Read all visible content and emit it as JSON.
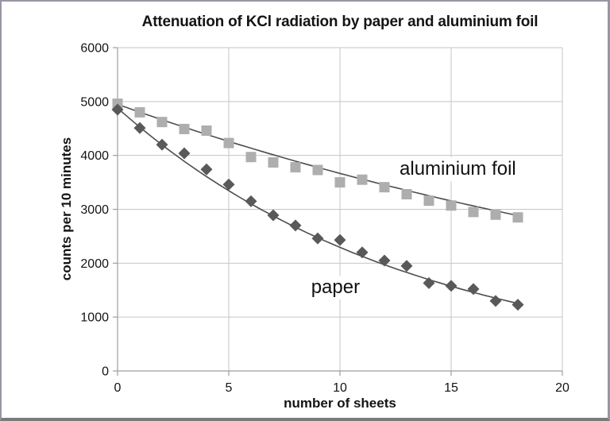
{
  "colors": {
    "text": "#141414",
    "gridline": "#c6c6c6",
    "axis": "#9e9e9e",
    "trendline": "#4d4d4d",
    "aluminium_marker": "#aeaeae",
    "paper_marker": "#595959",
    "frame_border": "#9b95a1",
    "frame_border_bottom": "#7b7b7b",
    "plot_background": "#ffffff"
  },
  "chart_data": {
    "type": "scatter",
    "title": "Attenuation of KCl radiation by paper and aluminium foil",
    "xlabel": "number of sheets",
    "ylabel": "counts per 10 minutes",
    "xlim": [
      0,
      20
    ],
    "ylim": [
      0,
      6000
    ],
    "x_ticks": [
      0,
      5,
      10,
      15,
      20
    ],
    "y_ticks": [
      0,
      1000,
      2000,
      3000,
      4000,
      5000,
      6000
    ],
    "grid": true,
    "legend_position": "inline-annotations",
    "x": [
      0,
      1,
      2,
      3,
      4,
      5,
      6,
      7,
      8,
      9,
      10,
      11,
      12,
      13,
      14,
      15,
      16,
      17,
      18
    ],
    "series": [
      {
        "name": "aluminium foil",
        "marker": "square",
        "values": [
          4960,
          4800,
          4620,
          4490,
          4460,
          4230,
          3970,
          3870,
          3780,
          3730,
          3500,
          3550,
          3410,
          3280,
          3160,
          3070,
          2950,
          2900,
          2850
        ],
        "trendline": {
          "type": "exponential",
          "a": 4950,
          "b": 0.03,
          "x_start": 0,
          "x_end": 18.0
        }
      },
      {
        "name": "paper",
        "marker": "diamond",
        "values": [
          4850,
          4510,
          4200,
          4040,
          3740,
          3460,
          3150,
          2890,
          2700,
          2460,
          2430,
          2200,
          2050,
          1950,
          1630,
          1580,
          1520,
          1300,
          1230
        ],
        "trendline": {
          "type": "exponential",
          "a": 4880,
          "b": 0.0755,
          "x_start": 0,
          "x_end": 18.3
        }
      }
    ],
    "annotations": [
      {
        "text": "aluminium foil",
        "x": 15.3,
        "y": 3745
      },
      {
        "text": "paper",
        "x": 9.8,
        "y": 1545
      }
    ]
  }
}
